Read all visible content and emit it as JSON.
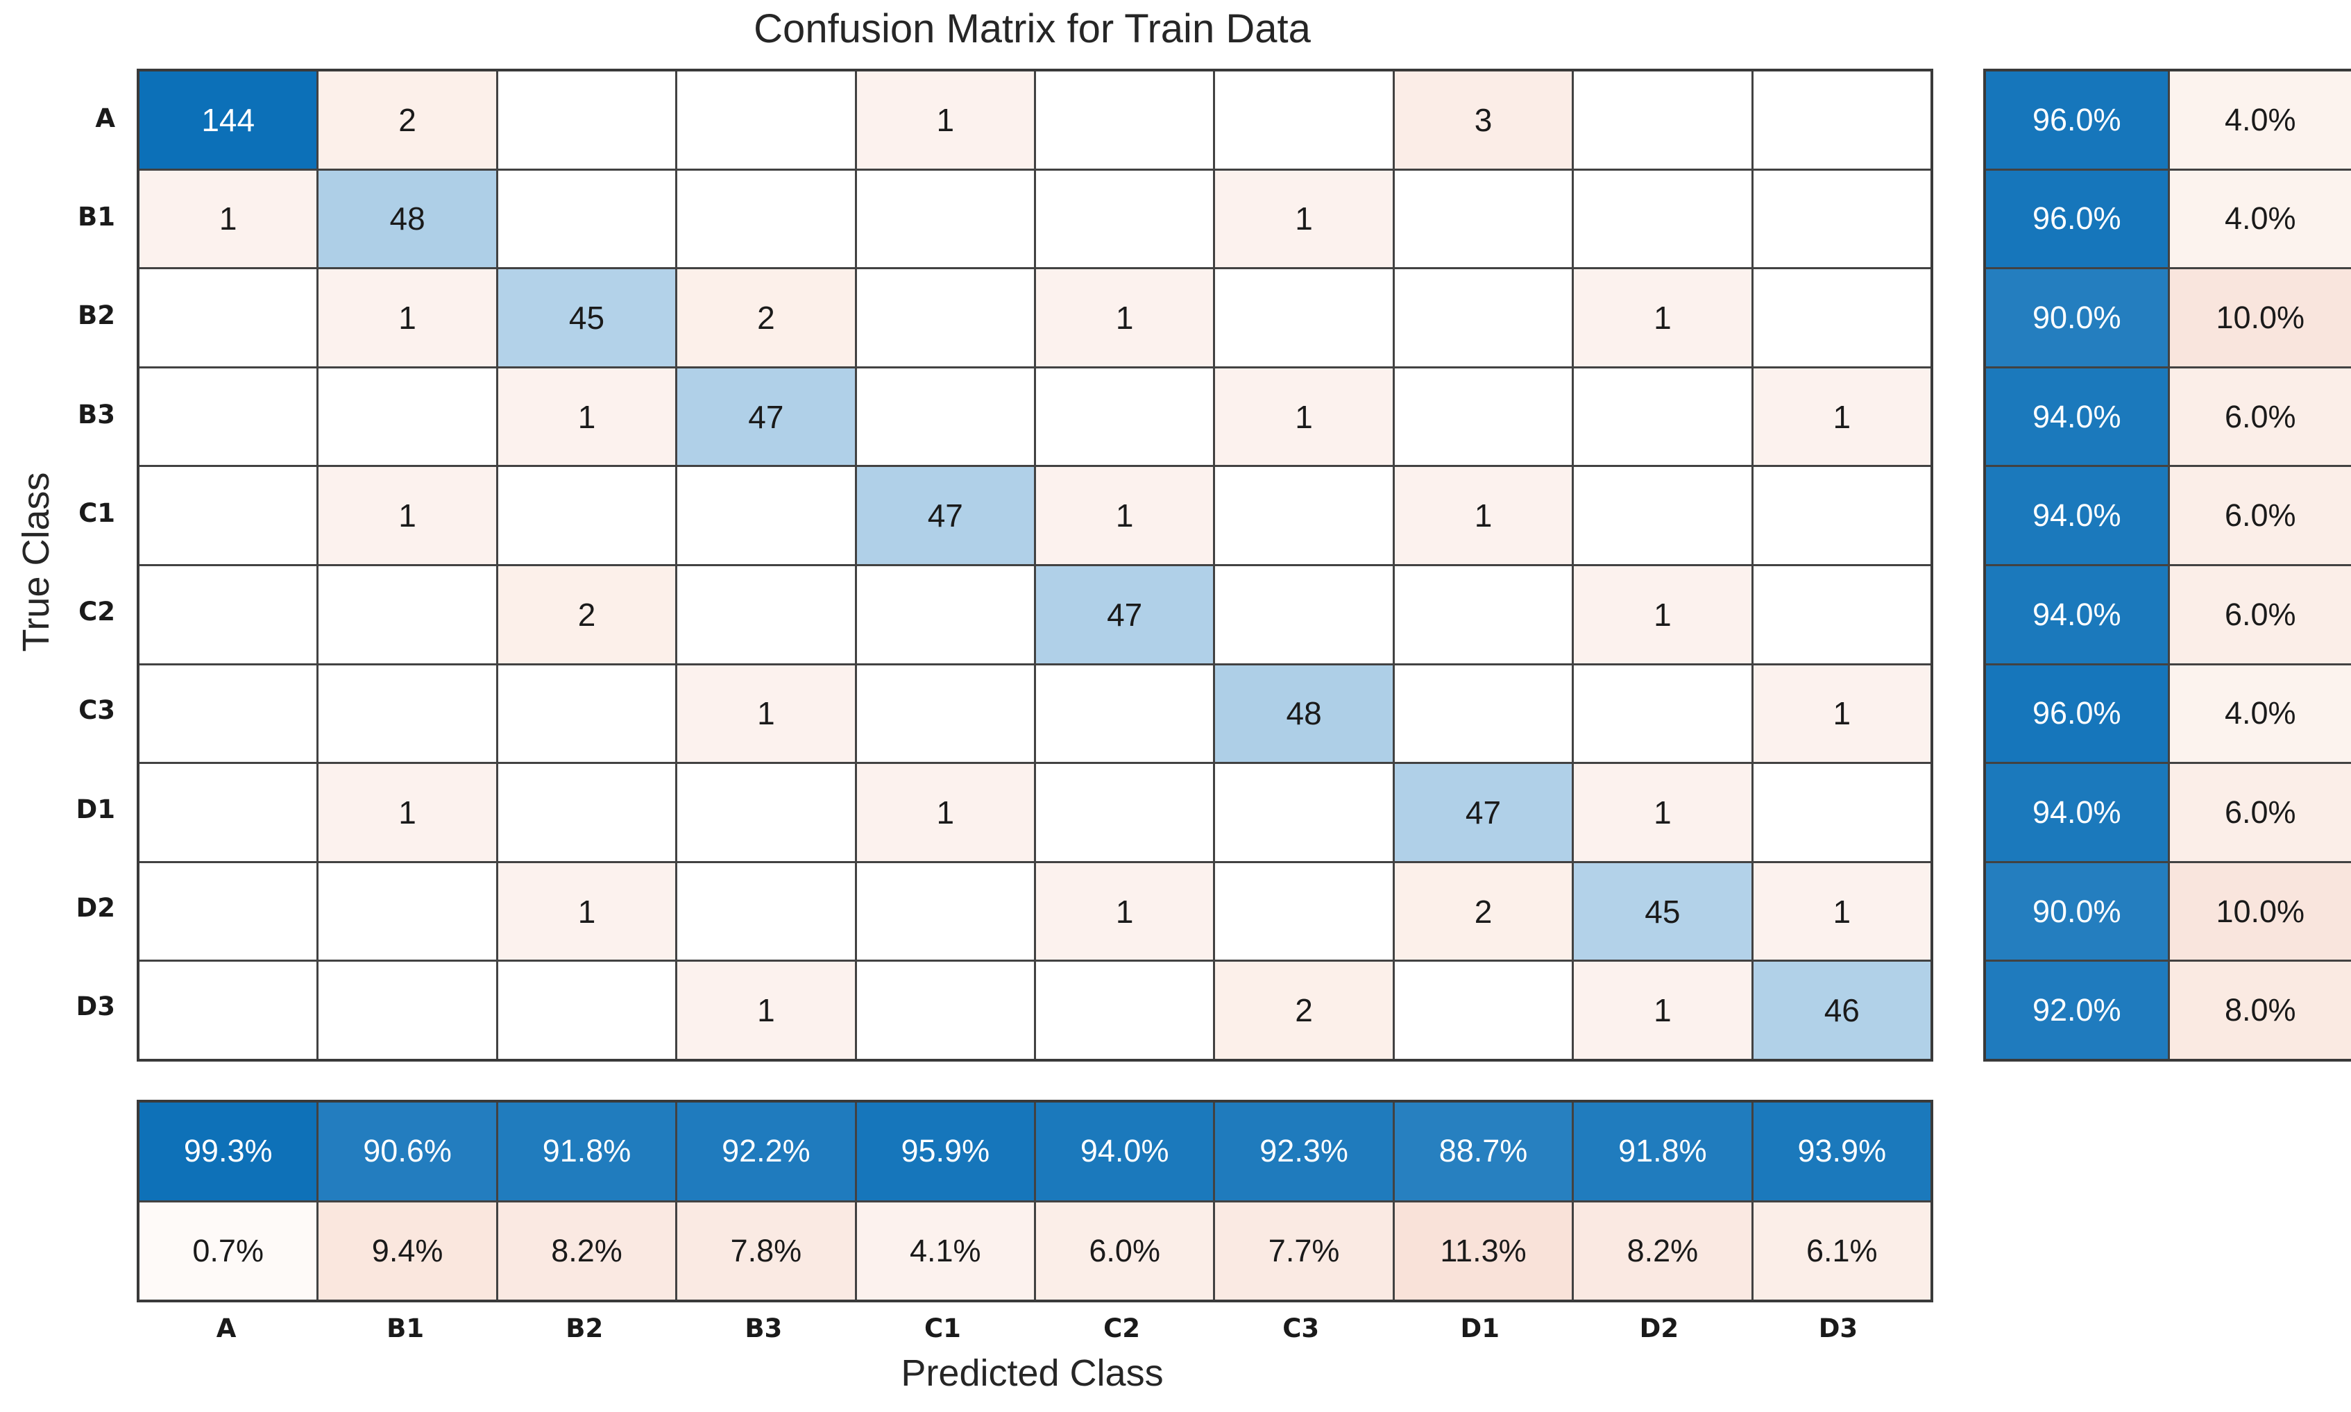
{
  "chart_data": {
    "type": "heatmap",
    "title": "Confusion Matrix for Train Data",
    "xlabel": "Predicted Class",
    "ylabel": "True Class",
    "classes": [
      "A",
      "B1",
      "B2",
      "B3",
      "C1",
      "C2",
      "C3",
      "D1",
      "D2",
      "D3"
    ],
    "matrix": [
      [
        144,
        2,
        null,
        null,
        1,
        null,
        null,
        3,
        null,
        null
      ],
      [
        1,
        48,
        null,
        null,
        null,
        null,
        1,
        null,
        null,
        null
      ],
      [
        null,
        1,
        45,
        2,
        null,
        1,
        null,
        null,
        1,
        null
      ],
      [
        null,
        null,
        1,
        47,
        null,
        null,
        1,
        null,
        null,
        1
      ],
      [
        null,
        1,
        null,
        null,
        47,
        1,
        null,
        1,
        null,
        null
      ],
      [
        null,
        null,
        2,
        null,
        null,
        47,
        null,
        null,
        1,
        null
      ],
      [
        null,
        null,
        null,
        1,
        null,
        null,
        48,
        null,
        null,
        1
      ],
      [
        null,
        1,
        null,
        null,
        1,
        null,
        null,
        47,
        1,
        null
      ],
      [
        null,
        null,
        1,
        null,
        null,
        1,
        null,
        2,
        45,
        1
      ],
      [
        null,
        null,
        null,
        1,
        null,
        null,
        2,
        null,
        1,
        46
      ]
    ],
    "row_summary": {
      "correct": [
        "96.0%",
        "96.0%",
        "90.0%",
        "94.0%",
        "94.0%",
        "94.0%",
        "96.0%",
        "94.0%",
        "90.0%",
        "92.0%"
      ],
      "incorrect": [
        "4.0%",
        "4.0%",
        "10.0%",
        "6.0%",
        "6.0%",
        "6.0%",
        "4.0%",
        "6.0%",
        "10.0%",
        "8.0%"
      ]
    },
    "col_summary": {
      "correct": [
        "99.3%",
        "90.6%",
        "91.8%",
        "92.2%",
        "95.9%",
        "94.0%",
        "92.3%",
        "88.7%",
        "91.8%",
        "93.9%"
      ],
      "incorrect": [
        "0.7%",
        "9.4%",
        "8.2%",
        "7.8%",
        "4.1%",
        "6.0%",
        "7.7%",
        "11.3%",
        "8.2%",
        "6.1%"
      ]
    },
    "colors": {
      "diagonal_blue": "#0c70b8",
      "offdiagonal_orange": "#d95319",
      "gridline": "#424242",
      "background": "#ffffff",
      "text_dark": "#1a1a1a",
      "text_light": "#ffffff"
    },
    "layout": {
      "row_summary_position": "right",
      "col_summary_position": "bottom",
      "grid": "on"
    }
  }
}
